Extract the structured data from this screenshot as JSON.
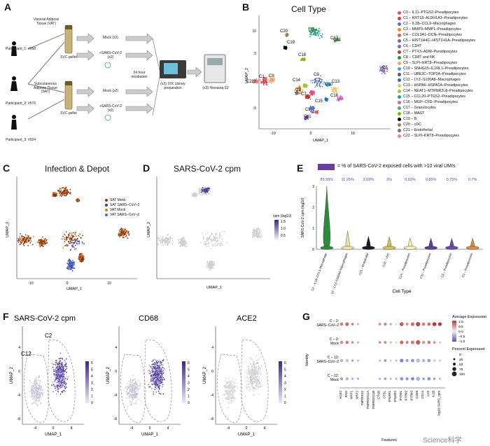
{
  "panels": {
    "a": {
      "letter": "A",
      "participants": [
        "Participant_1: #658",
        "Participant_2: #576",
        "Participant_3: #924"
      ],
      "tissues": [
        "Visceral Adipose Tissue (VAT)",
        "Subcutaneous Adipose Tissue (SAT)"
      ],
      "svc_label": "SVC pellet",
      "mock_label": "Mock (x2)",
      "sars_label": "+SARS-CoV-2 (x2)",
      "incubation_label": "24 hour incubation",
      "library_label": "(x3) 10X Library preparation",
      "novaseq_label": "(x3) Novaseq S2"
    },
    "b": {
      "letter": "B",
      "title": "Cell Type",
      "xlabel": "UMAP_1",
      "ylabel": "UMAP_2",
      "xticks": [
        "-10",
        "0",
        "10"
      ],
      "yticks": [
        "10",
        "5",
        "0",
        "-5"
      ],
      "legend": [
        {
          "label": "C0 – IL11–PTGS2–Preadipocytes",
          "color": "#e24a86"
        },
        {
          "label": "C1 – KRT18–ALDH1A3–Preadipocytes",
          "color": "#e63946"
        },
        {
          "label": "C2 – IL1B–CCL3–Macrophages",
          "color": "#4a77d6"
        },
        {
          "label": "C3 – MMP3–MMP1–Preadipocytes",
          "color": "#f08a2a"
        },
        {
          "label": "C4 – COL3A1–DCN–Preadipocytes",
          "color": "#e85c40"
        },
        {
          "label": "C5 – HIST1H4C–HIST1H1A–Preadipocytes",
          "color": "#5a6fc8"
        },
        {
          "label": "C6 – CD4T",
          "color": "#8b5fc7"
        },
        {
          "label": "C7 – PTX3–ADM–Preadipocytes",
          "color": "#c0392b"
        },
        {
          "label": "C8 – CD8T and NK",
          "color": "#2e8b57"
        },
        {
          "label": "C9 – SLPI–KRT8–Preadipocytes",
          "color": "#f4a261"
        },
        {
          "label": "C10 – SNHG15–IL1RL1–Preadipocytes",
          "color": "#3fa7d6"
        },
        {
          "label": "C11 – UBE2C–TOP2A–Preadipocytes",
          "color": "#6a4c93"
        },
        {
          "label": "C12 – LYZ–S100A8–Macrophages",
          "color": "#1f77b4"
        },
        {
          "label": "C13 – HSPA6–HSPA1A–Preadipocytes",
          "color": "#e9c46a"
        },
        {
          "label": "C14 – NEAT1–MTRNR2L8–Preadipocytes",
          "color": "#9bc53d"
        },
        {
          "label": "C15 – CCL20–PTGS2–Preadipocytes",
          "color": "#2a9d8f"
        },
        {
          "label": "C16 – MGP–CFD–Preadipocytes",
          "color": "#d35db3"
        },
        {
          "label": "C17 – Granulocytes",
          "color": "#55a868"
        },
        {
          "label": "C18 – MAST",
          "color": "#7fb800"
        },
        {
          "label": "C19 – B",
          "color": "#000000"
        },
        {
          "label": "C20 – cDC",
          "color": "#a67c52"
        },
        {
          "label": "C21 – Endothelial",
          "color": "#6c757d"
        },
        {
          "label": "C22 – SLPI–KRT8–Preadipocytes",
          "color": "#f28482"
        }
      ],
      "cluster_labels": [
        "C20",
        "C19",
        "C18",
        "C17",
        "C21",
        "C6",
        "C14",
        "C22",
        "C1",
        "C9",
        "C3",
        "C2",
        "C13",
        "C10",
        "C16",
        "C15",
        "C5",
        "C11",
        "C7",
        "C0"
      ]
    },
    "c": {
      "letter": "C",
      "title": "Infection & Depot",
      "xlabel": "UMAP_1",
      "ylabel": "UMAP_2",
      "legend": [
        {
          "label": "SAT Mock",
          "color": "#8a3b12"
        },
        {
          "label": "SAT SARS–CoV–2",
          "color": "#5a2d82"
        },
        {
          "label": "VAT Mock",
          "color": "#e07a2f"
        },
        {
          "label": "VAT SARS–CoV–2",
          "color": "#3b6fd6"
        }
      ],
      "xticks": [
        "-10",
        "0",
        "10"
      ]
    },
    "d": {
      "letter": "D",
      "title": "SARS-CoV-2 cpm",
      "xlabel": "UMAP_1",
      "ylabel": "UMAP_2",
      "scale_label": "cpm (log10)",
      "scale_ticks": [
        "1.5",
        "1.0",
        "0.5"
      ]
    },
    "e": {
      "letter": "E",
      "legend_text": "= % of SARS-CoV-2 exposed cells with >10 viral UMIs",
      "legend_color": "#6a3fa0",
      "ylabel": "SARS-CoV-2 cpm (log10)",
      "xlabel": "Cell Type",
      "yticks": [
        "3",
        "2",
        "1",
        "0"
      ]
    },
    "f": {
      "letter": "F",
      "titles": [
        "SARS-CoV-2 cpm",
        "CD68",
        "ACE2"
      ],
      "cluster_labels": [
        "C12",
        "C2"
      ],
      "xlabel": "UMAP_1",
      "ylabel": "UMAP_2",
      "xticks": [
        "-4",
        "0",
        "4"
      ],
      "yticks": [
        "4",
        "0",
        "-4",
        "-8"
      ],
      "scale_ticks": [
        "6",
        "5",
        "4",
        "3",
        "2",
        "1",
        "0"
      ]
    },
    "g": {
      "letter": "G",
      "ylabel": "Identity",
      "xlabel": "Features",
      "rows": [
        "C – 2: SARS–CoV–2",
        "C – 2: Mock",
        "C – 12: SARS–CoV–2",
        "C – 12: Mock"
      ],
      "features": [
        "ACE2",
        "BSG",
        "NRP1",
        "NRP2",
        "TMPRSS2",
        "TMPRSS11A",
        "TMPRSS11B",
        "CTSB",
        "CTSL",
        "IFNAR1",
        "IFNAR2",
        "IFITM1",
        "IFITM2",
        "IFITM3",
        "CD68",
        "CD14",
        "LYZ",
        "IL1B",
        "log10 SARS_cpm"
      ],
      "avg_title": "Average Expression",
      "avg_ticks": [
        "1.0",
        "0.5",
        "0.0",
        "–0.5",
        "–1.0"
      ],
      "pct_title": "Percent Expressed",
      "pct_ticks": [
        "0",
        "25",
        "50",
        "75",
        "100"
      ]
    }
  },
  "watermark": "Science科学",
  "chart_data": [
    {
      "type": "bar",
      "title": "",
      "xlabel": "Cell Type",
      "ylabel": "SARS-CoV-2 cpm (log10)",
      "categories": [
        "C2 – IL1B–CCL3–Macrophage",
        "C12 – LYZ–S100A8–Macrophages",
        "C21 – Endothelial",
        "C20 – cDC",
        "C14 – Preadipocytes",
        "C11 – Preadipocytes",
        "C5 – Preadipocytes",
        "C3 – Preadipocytes"
      ],
      "values": [
        85.55,
        11.25,
        3.69,
        3,
        0.92,
        0.85,
        0.75,
        0.7
      ],
      "value_labels": [
        "85.55%",
        "11.25%",
        "3.69%",
        "3%",
        "0.92%",
        "0.85%",
        "0.75%",
        "0.7%"
      ],
      "violin_colors": [
        "#2e8b3e",
        "#e9e2a8",
        "#1a1a1a",
        "#d4c15a",
        "#f3f0b0",
        "#5b3f94",
        "#6a4aa8",
        "#e08a3c"
      ],
      "ylim": [
        0,
        3
      ]
    },
    {
      "type": "scatter",
      "title": "",
      "xlabel": "Features",
      "ylabel": "Identity",
      "rows": [
        "C – 2: SARS–CoV–2",
        "C – 2: Mock",
        "C – 12: SARS–CoV–2",
        "C – 12: Mock"
      ],
      "series": [
        {
          "name": "C – 2: SARS–CoV–2",
          "values": [
            0.6,
            0.7,
            0.6,
            0.3,
            0,
            0,
            0,
            0.5,
            0.6,
            0.4,
            0.2,
            0.8,
            0.5,
            0.7,
            0.9,
            0.6,
            0.7,
            1.0,
            1.0
          ]
        },
        {
          "name": "C – 2: Mock",
          "values": [
            0.5,
            0.6,
            0.5,
            0.3,
            0,
            0,
            0,
            0.5,
            0.5,
            0.3,
            0.2,
            0.7,
            0.6,
            0.6,
            0.8,
            0.5,
            0.6,
            0.4,
            -0.5
          ]
        },
        {
          "name": "C – 12: SARS–CoV–2",
          "values": [
            -0.4,
            -0.3,
            -0.5,
            -0.4,
            0,
            0,
            0,
            -0.3,
            -0.6,
            -0.2,
            -0.4,
            -0.7,
            -0.5,
            -0.6,
            -0.3,
            -0.4,
            -0.5,
            -0.2,
            0.2
          ]
        },
        {
          "name": "C – 12: Mock",
          "values": [
            -0.5,
            -0.4,
            -0.4,
            -0.6,
            0,
            0,
            0,
            -0.4,
            -0.5,
            -0.4,
            -0.5,
            -0.6,
            -0.6,
            -0.7,
            -0.4,
            -0.5,
            -0.6,
            -0.6,
            -0.8
          ]
        }
      ],
      "pct": [
        [
          60,
          70,
          40,
          30,
          0,
          0,
          0,
          40,
          50,
          30,
          20,
          80,
          50,
          70,
          90,
          60,
          60,
          80,
          70
        ],
        [
          60,
          60,
          40,
          30,
          0,
          0,
          0,
          40,
          50,
          30,
          20,
          70,
          50,
          70,
          90,
          50,
          60,
          50,
          10
        ],
        [
          50,
          50,
          30,
          20,
          0,
          0,
          0,
          30,
          40,
          20,
          20,
          70,
          50,
          60,
          80,
          50,
          60,
          40,
          30
        ],
        [
          50,
          50,
          30,
          20,
          0,
          0,
          0,
          30,
          40,
          20,
          20,
          60,
          50,
          60,
          80,
          40,
          60,
          30,
          10
        ]
      ]
    }
  ]
}
